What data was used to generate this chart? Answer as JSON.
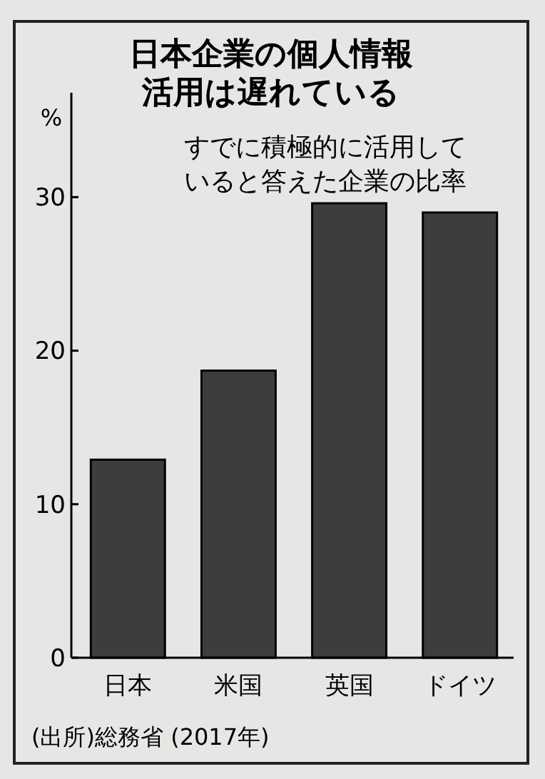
{
  "chart_data": {
    "type": "bar",
    "title": "日本企業の個人情報活用は遅れている",
    "subtitle": "すでに積極的に活用していると答えた企業の比率",
    "ylabel": "%",
    "categories": [
      "日本",
      "米国",
      "英国",
      "ドイツ"
    ],
    "values": [
      12.9,
      18.7,
      29.6,
      29.0
    ],
    "color": "#3d3d3d",
    "ylim": [
      0,
      36.8
    ],
    "yticks": [
      0,
      10,
      20,
      30
    ],
    "grid": false,
    "annotations": [
      "(出所)総務省 (2017年)"
    ]
  }
}
